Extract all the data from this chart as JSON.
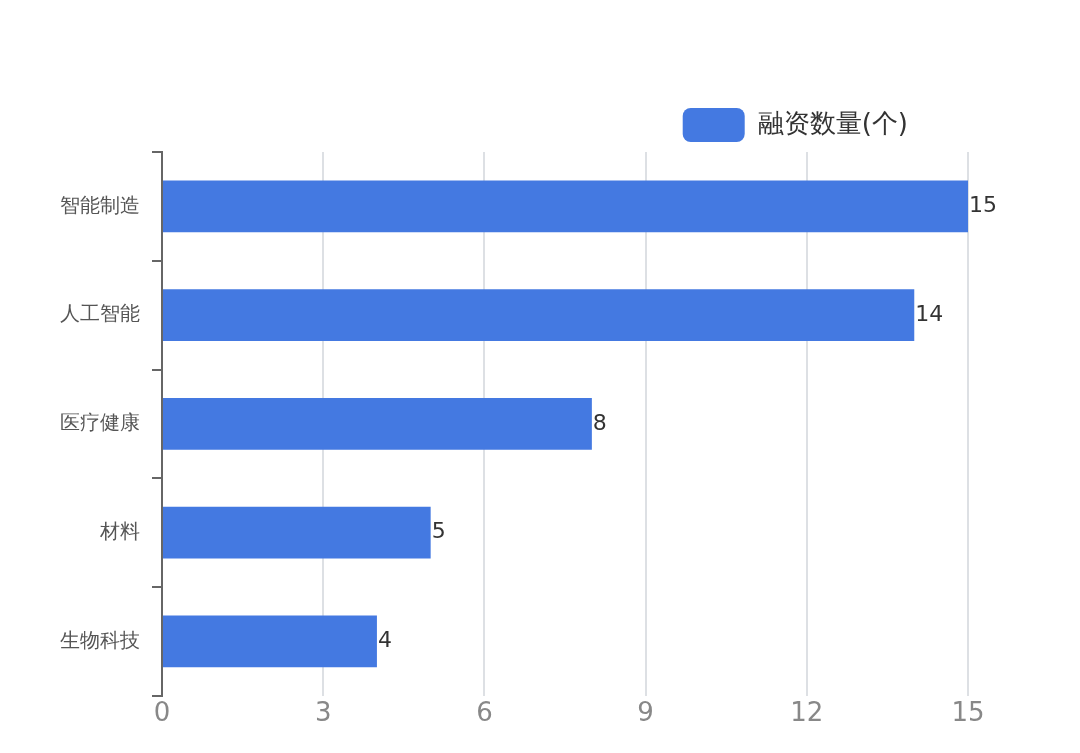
{
  "chart_data": {
    "type": "bar",
    "orientation": "horizontal",
    "categories": [
      "智能制造",
      "人工智能",
      "医疗健康",
      "材料",
      "生物科技"
    ],
    "series": [
      {
        "name": "融资数量(个)",
        "color": "#4479e1",
        "values": [
          15,
          14,
          8,
          5,
          4
        ]
      }
    ],
    "xlim": [
      0,
      15
    ],
    "xticks": [
      0,
      3,
      6,
      9,
      12,
      15
    ],
    "grid": "x",
    "legend": "top right",
    "data_labels": true
  }
}
